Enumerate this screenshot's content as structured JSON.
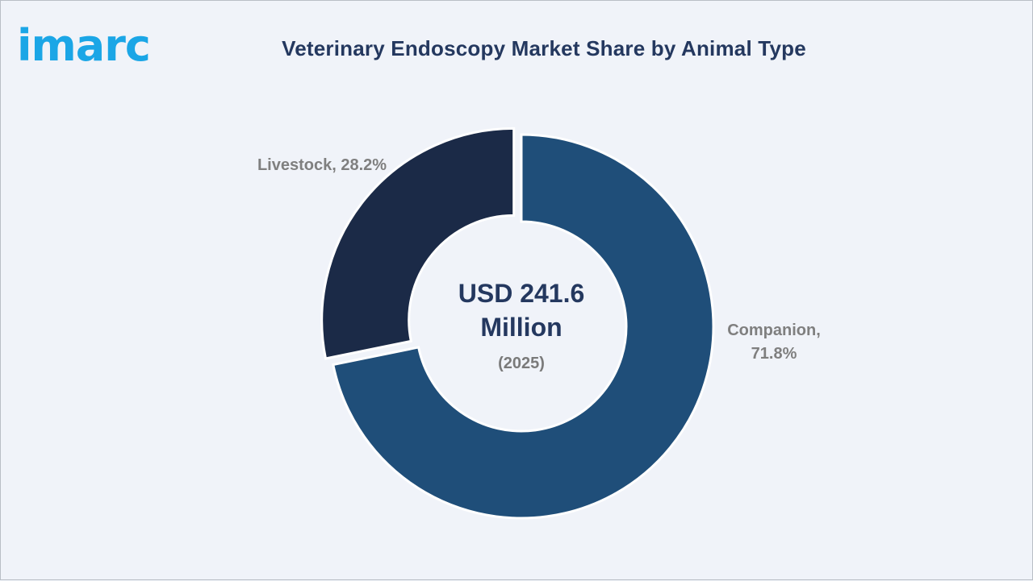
{
  "brand": {
    "logo_text": "imarc",
    "accent_color": "#1ba6e6"
  },
  "title": "Veterinary Endoscopy Market Share by Animal Type",
  "center": {
    "value_line1": "USD 241.6",
    "value_line2": "Million",
    "year": "(2025)"
  },
  "chart_data": {
    "type": "pie",
    "variant": "donut",
    "start_angle_deg": 0,
    "direction": "clockwise",
    "slices": [
      {
        "label": "Companion",
        "value": 71.8,
        "color": "#1f4e79",
        "exploded": false
      },
      {
        "label": "Livestock",
        "value": 28.2,
        "color": "#1b2a47",
        "exploded": true
      }
    ],
    "labels": {
      "companion_line1": "Companion,",
      "companion_line2": "71.8%",
      "livestock": "Livestock, 28.2%"
    },
    "title": "Veterinary Endoscopy Market Share by Animal Type",
    "total": "USD 241.6 Million",
    "year": "2025"
  }
}
